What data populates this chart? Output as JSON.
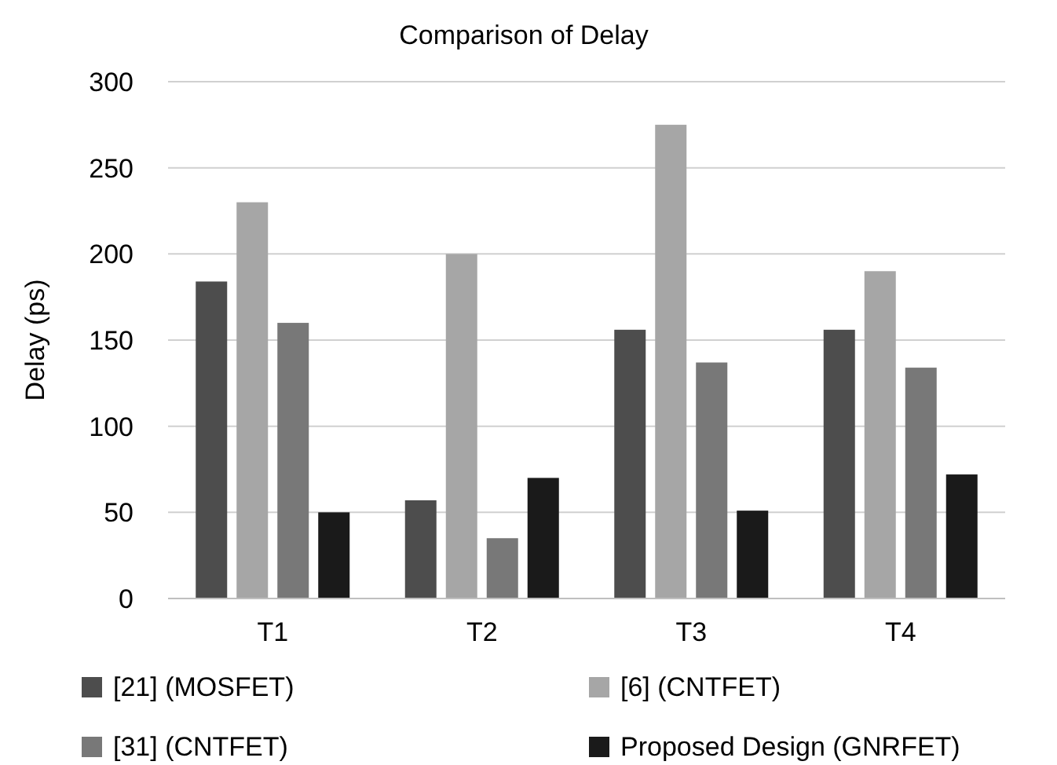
{
  "chart_data": {
    "type": "bar",
    "title": "Comparison of Delay",
    "ylabel": "Delay (ps)",
    "categories": [
      "T1",
      "T2",
      "T3",
      "T4"
    ],
    "series": [
      {
        "name": "[21] (MOSFET)",
        "color": "#4d4d4d",
        "values": [
          184,
          57,
          156,
          156
        ]
      },
      {
        "name": "[6] (CNTFET)",
        "color": "#a6a6a6",
        "values": [
          230,
          200,
          275,
          190
        ]
      },
      {
        "name": "[31] (CNTFET)",
        "color": "#787878",
        "values": [
          160,
          35,
          137,
          134
        ]
      },
      {
        "name": "Proposed Design (GNRFET)",
        "color": "#1a1a1a",
        "values": [
          50,
          70,
          51,
          72
        ]
      }
    ],
    "ylim": [
      0,
      300
    ],
    "yticks": [
      0,
      50,
      100,
      150,
      200,
      250,
      300
    ],
    "grid": "y",
    "legend": "bottom"
  }
}
